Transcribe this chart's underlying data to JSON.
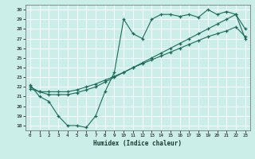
{
  "xlabel": "Humidex (Indice chaleur)",
  "bg_color": "#cceee8",
  "grid_color": "#ffffff",
  "line_color": "#1a6b5a",
  "xlim": [
    -0.5,
    23.5
  ],
  "ylim": [
    17.5,
    30.5
  ],
  "xticks": [
    0,
    1,
    2,
    3,
    4,
    5,
    6,
    7,
    8,
    9,
    10,
    11,
    12,
    13,
    14,
    15,
    16,
    17,
    18,
    19,
    20,
    21,
    22,
    23
  ],
  "yticks": [
    18,
    19,
    20,
    21,
    22,
    23,
    24,
    25,
    26,
    27,
    28,
    29,
    30
  ],
  "line1_x": [
    0,
    1,
    2,
    3,
    4,
    5,
    6,
    7,
    8,
    9,
    10,
    11,
    12,
    13,
    14,
    15,
    16,
    17,
    18,
    19,
    20,
    21,
    22,
    23
  ],
  "line1_y": [
    22.2,
    21.0,
    20.5,
    19.0,
    18.0,
    18.0,
    17.8,
    19.0,
    21.5,
    23.5,
    29.0,
    27.5,
    27.0,
    29.0,
    29.5,
    29.5,
    29.3,
    29.5,
    29.2,
    30.0,
    29.5,
    29.8,
    29.5,
    28.0
  ],
  "line2_x": [
    0,
    1,
    2,
    3,
    4,
    5,
    6,
    7,
    8,
    9,
    10,
    11,
    12,
    13,
    14,
    15,
    16,
    17,
    18,
    19,
    20,
    21,
    22,
    23
  ],
  "line2_y": [
    21.8,
    21.5,
    21.5,
    21.5,
    21.5,
    21.7,
    22.0,
    22.3,
    22.7,
    23.1,
    23.5,
    24.0,
    24.4,
    24.8,
    25.2,
    25.6,
    26.0,
    26.4,
    26.8,
    27.2,
    27.5,
    27.8,
    28.2,
    27.2
  ],
  "line3_x": [
    0,
    1,
    2,
    3,
    4,
    5,
    6,
    7,
    8,
    9,
    10,
    11,
    12,
    13,
    14,
    15,
    16,
    17,
    18,
    19,
    20,
    21,
    22,
    23
  ],
  "line3_y": [
    22.0,
    21.5,
    21.2,
    21.2,
    21.2,
    21.4,
    21.7,
    22.0,
    22.5,
    23.0,
    23.5,
    24.0,
    24.5,
    25.0,
    25.5,
    26.0,
    26.5,
    27.0,
    27.5,
    28.0,
    28.5,
    29.0,
    29.5,
    27.0
  ]
}
